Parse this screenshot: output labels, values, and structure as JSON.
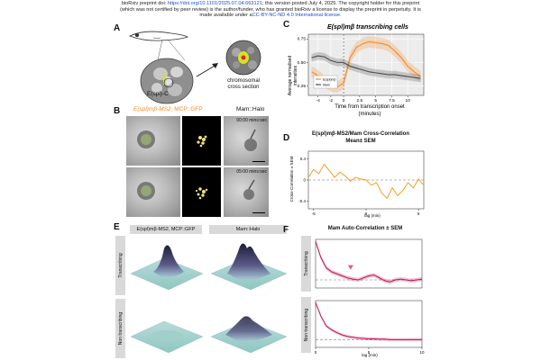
{
  "header": {
    "line1_prefix": "bioRxiv preprint doi: ",
    "doi": "https://doi.org/10.1101/2025.07.04.663121",
    "line1_suffix": "; this version posted July 4, 2025. The copyright holder for this preprint",
    "line2": "(which was not certified by peer review) is the author/funder, who has granted bioRxiv a license to display the preprint in perpetuity. It is",
    "line3_prefix": "made available under a",
    "license": "CC-BY-NC-ND 4.0 International license",
    "line3_suffix": "."
  },
  "panelA": {
    "label": "A",
    "locus": "E(spl)-C",
    "section_line1": "chromosomal",
    "section_line2": "cross section"
  },
  "panelB": {
    "label": "B",
    "title_orange": "E(spl)mβ-MS2,",
    "title_mcp": "MCP::GFP",
    "title_gray": "Mam::Halo",
    "time1": "00:00 mins:sec",
    "time2": "05:00 mins:sec"
  },
  "panelC": {
    "label": "C",
    "title": "E(spl)mβ transcribing cells",
    "ylabel_line1": "Average normalised",
    "ylabel_line2": "intensities",
    "xlabel_line1": "Time from transcription onset",
    "xlabel_line2": "(minutes)",
    "legend": [
      "E(spl)mβ",
      "Mam"
    ],
    "colors": {
      "orange": "#f28c28",
      "gray": "#4a4a4a"
    }
  },
  "panelD": {
    "label": "D",
    "title_line1": "E(spl)mβ-MS2/Mam Cross-Correlation",
    "title_line2": "Mean± SEM",
    "ylabel": "Cross-Correlation ± SEM",
    "xlabel": "lag (min)"
  },
  "panelE": {
    "label": "E",
    "col1": "E(spl)mβ-MS2, MCP::GFP",
    "col2": "Mam::Halo",
    "row1": "Transcribing",
    "row2": "Non transcribing"
  },
  "panelF": {
    "label": "F",
    "title": "Mam Auto-Correlation ± SEM",
    "row1": "Transcribing",
    "row2": "Non transcribing",
    "xlabel": "lag (min)"
  },
  "chart_data": [
    {
      "id": "C",
      "type": "line",
      "title": "E(spl)mβ transcribing cells",
      "xlabel": "Time from transcription onset (minutes)",
      "ylabel": "Average normalised intensities",
      "xlim": [
        -5.5,
        12.5
      ],
      "ylim": [
        0.15,
        0.8
      ],
      "x_ticks": [
        -4,
        -2,
        0,
        2.5,
        5,
        7.5,
        10
      ],
      "x_tick_labels": [
        "-4",
        "-2",
        "0",
        "2.5",
        "5",
        "7.5",
        "10"
      ],
      "y_ticks": [
        0.25,
        0.5,
        0.75
      ],
      "y_tick_labels": [
        "0.25",
        "0.50",
        "0.75"
      ],
      "x": [
        -5,
        -4,
        -3,
        -2,
        -1,
        0,
        1,
        2,
        3,
        4,
        5,
        6,
        7,
        8,
        9,
        10,
        11,
        12
      ],
      "series": [
        {
          "name": "E(spl)mβ",
          "color": "#f28c28",
          "values": [
            0.4,
            0.36,
            0.3,
            0.25,
            0.24,
            0.28,
            0.55,
            0.66,
            0.7,
            0.72,
            0.71,
            0.7,
            0.68,
            0.62,
            0.55,
            0.46,
            0.4,
            0.35
          ],
          "sem": 0.06
        },
        {
          "name": "Mam",
          "color": "#4a4a4a",
          "values": [
            0.55,
            0.57,
            0.56,
            0.52,
            0.5,
            0.5,
            0.46,
            0.44,
            0.42,
            0.4,
            0.39,
            0.38,
            0.37,
            0.37,
            0.36,
            0.35,
            0.34,
            0.33
          ],
          "sem": 0.04
        }
      ]
    },
    {
      "id": "D",
      "type": "line",
      "title": "E(spl)mβ-MS2/Mam Cross-Correlation Mean± SEM",
      "xlabel": "lag (min)",
      "ylabel": "Cross-Correlation ± SEM",
      "xlim": [
        -5.5,
        5.5
      ],
      "ylim": [
        -0.55,
        0.55
      ],
      "x_ticks": [
        -5,
        0,
        5
      ],
      "x_tick_labels": [
        "-5",
        "0",
        "5"
      ],
      "y_ticks": [
        0.4,
        0,
        -0.4
      ],
      "y_tick_labels": [
        "0.4",
        "0",
        "-0.4"
      ],
      "reference_y": 0,
      "x": [
        -5.5,
        -5,
        -4.5,
        -4,
        -3.5,
        -3,
        -2.5,
        -2,
        -1.5,
        -1,
        -0.5,
        0,
        0.5,
        1,
        1.5,
        2,
        2.5,
        3,
        3.5,
        4,
        4.5,
        5,
        5.5
      ],
      "series": [
        {
          "name": "cross-correlation",
          "color": "#f5a020",
          "values": [
            0.05,
            0.2,
            0.12,
            0.3,
            0.18,
            0.05,
            0.15,
            0.08,
            -0.02,
            0.05,
            0.02,
            0.0,
            -0.1,
            -0.05,
            -0.25,
            -0.35,
            -0.15,
            -0.3,
            -0.2,
            -0.05,
            -0.15,
            0.02,
            -0.1
          ]
        }
      ]
    },
    {
      "id": "F-transcribing",
      "type": "line",
      "title": "Mam Auto-Correlation ± SEM (Transcribing)",
      "xlabel": "lag (min)",
      "xlim": [
        0,
        10
      ],
      "ylim": [
        -0.2,
        1.0
      ],
      "reference_y": 0,
      "annotation": "peak marker",
      "x": [
        0,
        0.5,
        1,
        1.5,
        2,
        2.5,
        3,
        3.5,
        4,
        4.5,
        5,
        5.5,
        6,
        6.5,
        7,
        7.5,
        8,
        8.5,
        9,
        9.5,
        10
      ],
      "series": [
        {
          "name": "Mam",
          "color": "#c2185b",
          "values": [
            0.95,
            0.55,
            0.3,
            0.2,
            0.15,
            0.1,
            0.05,
            0.02,
            0.0,
            0.05,
            0.1,
            0.12,
            0.05,
            -0.02,
            -0.05,
            0.0,
            0.02,
            0.0,
            -0.02,
            0.0,
            0.02
          ],
          "sem": 0.05
        }
      ]
    },
    {
      "id": "F-nontranscribing",
      "type": "line",
      "title": "Mam Auto-Correlation ± SEM (Non transcribing)",
      "xlabel": "lag (min)",
      "xlim": [
        0,
        10
      ],
      "ylim": [
        -0.2,
        1.0
      ],
      "x_ticks": [
        0,
        5,
        10
      ],
      "x_tick_labels": [
        "0",
        "5",
        "10"
      ],
      "reference_y": 0,
      "x": [
        0,
        0.5,
        1,
        1.5,
        2,
        2.5,
        3,
        3.5,
        4,
        4.5,
        5,
        5.5,
        6,
        6.5,
        7,
        7.5,
        8,
        8.5,
        9,
        9.5,
        10
      ],
      "series": [
        {
          "name": "Mam",
          "color": "#c2185b",
          "values": [
            0.95,
            0.6,
            0.35,
            0.25,
            0.18,
            0.12,
            0.08,
            0.06,
            0.04,
            0.03,
            0.02,
            0.02,
            0.01,
            0.01,
            0.0,
            0.0,
            0.0,
            0.0,
            0.0,
            0.0,
            0.0
          ],
          "sem": 0.04
        }
      ]
    }
  ]
}
